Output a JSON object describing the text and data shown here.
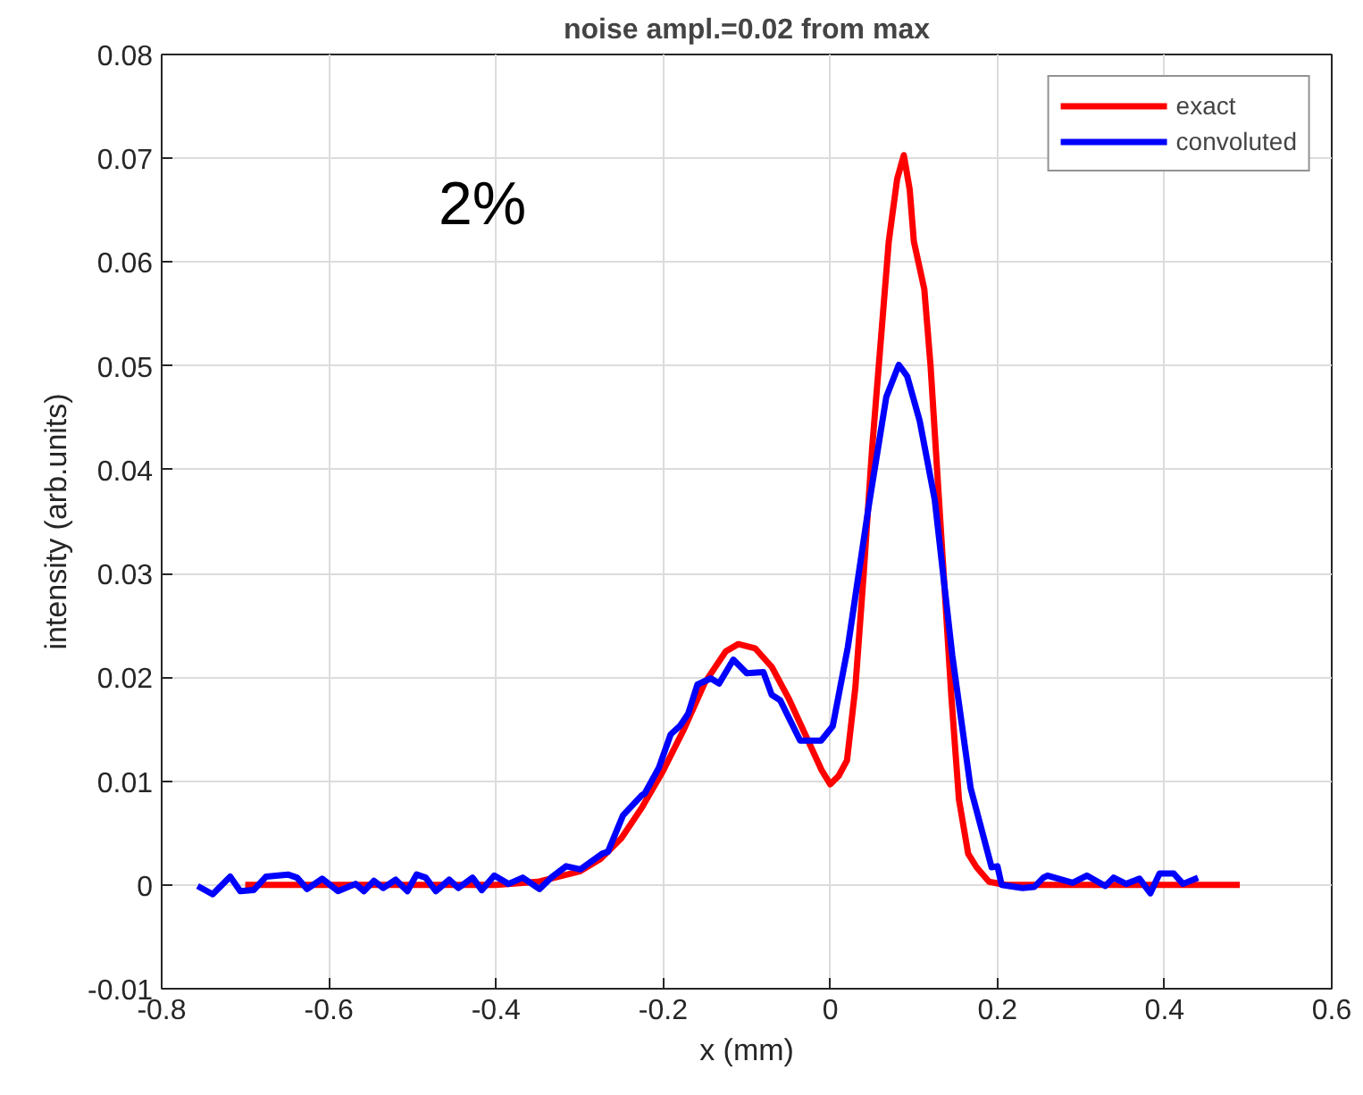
{
  "chart_data": {
    "type": "line",
    "title": "noise ampl.=0.02 from max",
    "xlabel": "x (mm)",
    "ylabel": "intensity (arb.units)",
    "annotations": [
      "2%"
    ],
    "xlim": [
      -0.8,
      0.6
    ],
    "xticks": [
      -0.8,
      -0.6,
      -0.4,
      -0.2,
      0,
      0.2,
      0.4,
      0.6
    ],
    "ylim": [
      -0.01,
      0.08
    ],
    "yticks": [
      -0.01,
      0,
      0.01,
      0.02,
      0.03,
      0.04,
      0.05,
      0.06,
      0.07,
      0.08
    ],
    "grid": true,
    "legend": "top right",
    "line_style": "solid",
    "marker": "none",
    "series": [
      {
        "name": "exact",
        "color": "#ff0000",
        "x": [
          -0.7,
          -0.4,
          -0.35,
          -0.3,
          -0.275,
          -0.25,
          -0.225,
          -0.2,
          -0.175,
          -0.15,
          -0.125,
          -0.11,
          -0.09,
          -0.07,
          -0.05,
          -0.03,
          -0.01,
          0.0,
          0.01,
          0.02,
          0.03,
          0.04,
          0.05,
          0.06,
          0.07,
          0.08,
          0.088,
          0.095,
          0.1,
          0.1125,
          0.12,
          0.1325,
          0.145,
          0.154,
          0.165,
          0.175,
          0.19,
          0.21,
          0.49
        ],
        "values": [
          0,
          0,
          0.0003,
          0.0013,
          0.0025,
          0.0045,
          0.0075,
          0.011,
          0.015,
          0.0195,
          0.0225,
          0.0232,
          0.0228,
          0.021,
          0.018,
          0.0145,
          0.011,
          0.0097,
          0.0105,
          0.012,
          0.019,
          0.03,
          0.042,
          0.052,
          0.062,
          0.068,
          0.0703,
          0.067,
          0.062,
          0.0574,
          0.05,
          0.034,
          0.018,
          0.0082,
          0.003,
          0.0017,
          0.0003,
          0,
          0
        ]
      },
      {
        "name": "convoluted",
        "color": "#0000ff",
        "x": [
          -0.757,
          -0.739,
          -0.718,
          -0.706,
          -0.69,
          -0.675,
          -0.649,
          -0.638,
          -0.626,
          -0.608,
          -0.589,
          -0.568,
          -0.558,
          -0.546,
          -0.535,
          -0.52,
          -0.506,
          -0.495,
          -0.484,
          -0.472,
          -0.456,
          -0.445,
          -0.428,
          -0.417,
          -0.402,
          -0.385,
          -0.368,
          -0.348,
          -0.334,
          -0.316,
          -0.299,
          -0.273,
          -0.266,
          -0.248,
          -0.226,
          -0.222,
          -0.205,
          -0.191,
          -0.18,
          -0.17,
          -0.159,
          -0.143,
          -0.133,
          -0.116,
          -0.1,
          -0.08,
          -0.07,
          -0.06,
          -0.036,
          -0.011,
          0.003,
          0.021,
          0.046,
          0.067,
          0.082,
          0.092,
          0.107,
          0.125,
          0.146,
          0.168,
          0.193,
          0.2,
          0.205,
          0.23,
          0.244,
          0.255,
          0.26,
          0.29,
          0.307,
          0.329,
          0.339,
          0.354,
          0.37,
          0.383,
          0.394,
          0.411,
          0.422,
          0.44
        ],
        "values": [
          -0.0001,
          -0.0009,
          0.0008,
          -0.0006,
          -0.0005,
          0.0008,
          0.001,
          0.0007,
          -0.0004,
          0.0006,
          -0.0006,
          0.0001,
          -0.0006,
          0.0004,
          -0.0003,
          0.0005,
          -0.0006,
          0.001,
          0.0007,
          -0.0006,
          0.0005,
          -0.0003,
          0.0007,
          -0.0005,
          0.0009,
          0.0001,
          0.0007,
          -0.0004,
          0.0007,
          0.0018,
          0.0015,
          0.003,
          0.0032,
          0.0067,
          0.0086,
          0.0088,
          0.0113,
          0.0145,
          0.0153,
          0.0165,
          0.0193,
          0.0199,
          0.0194,
          0.0217,
          0.0204,
          0.0205,
          0.0183,
          0.0178,
          0.0139,
          0.0139,
          0.0153,
          0.0229,
          0.0365,
          0.047,
          0.0501,
          0.049,
          0.0447,
          0.0371,
          0.0221,
          0.0093,
          0.0017,
          0.0018,
          0,
          -0.0003,
          -0.0002,
          0.0007,
          0.0009,
          0.0002,
          0.0009,
          -0.0001,
          0.0007,
          0.0001,
          0.0006,
          -0.0008,
          0.0011,
          0.0011,
          0.0001,
          0.0007
        ]
      }
    ]
  }
}
